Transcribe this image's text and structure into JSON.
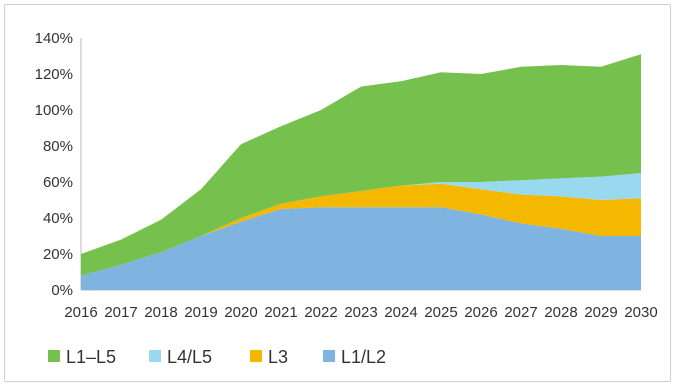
{
  "chart_data": {
    "type": "area",
    "stacked": true,
    "categories": [
      "2016",
      "2017",
      "2018",
      "2019",
      "2020",
      "2021",
      "2022",
      "2023",
      "2024",
      "2025",
      "2026",
      "2027",
      "2028",
      "2029",
      "2030"
    ],
    "series": [
      {
        "name": "L1/L2",
        "color": "#7fb3e0",
        "values": [
          8,
          14,
          21,
          30,
          38,
          45,
          46,
          46,
          46,
          46,
          42,
          37,
          34,
          30,
          30
        ]
      },
      {
        "name": "L3",
        "color": "#f5b800",
        "values": [
          0,
          0,
          0,
          0,
          2,
          3,
          6,
          9,
          12,
          13,
          14,
          16,
          18,
          20,
          21
        ]
      },
      {
        "name": "L4/L5",
        "color": "#99d9f0",
        "values": [
          0,
          0,
          0,
          0,
          0,
          0,
          0,
          0,
          0,
          1,
          4,
          8,
          10,
          13,
          14
        ]
      },
      {
        "name": "L1–L5",
        "color": "#76c14e",
        "values": [
          12,
          14,
          18,
          26,
          41,
          43,
          48,
          58,
          58,
          61,
          60,
          63,
          63,
          61,
          66
        ]
      }
    ],
    "y_ticks": [
      "0%",
      "20%",
      "40%",
      "60%",
      "80%",
      "100%",
      "120%",
      "140%"
    ],
    "ylim": [
      0,
      140
    ],
    "legend_order": [
      "L1–L5",
      "L4/L5",
      "L3",
      "L1/L2"
    ],
    "legend_position": "bottom-left",
    "grid": false
  }
}
